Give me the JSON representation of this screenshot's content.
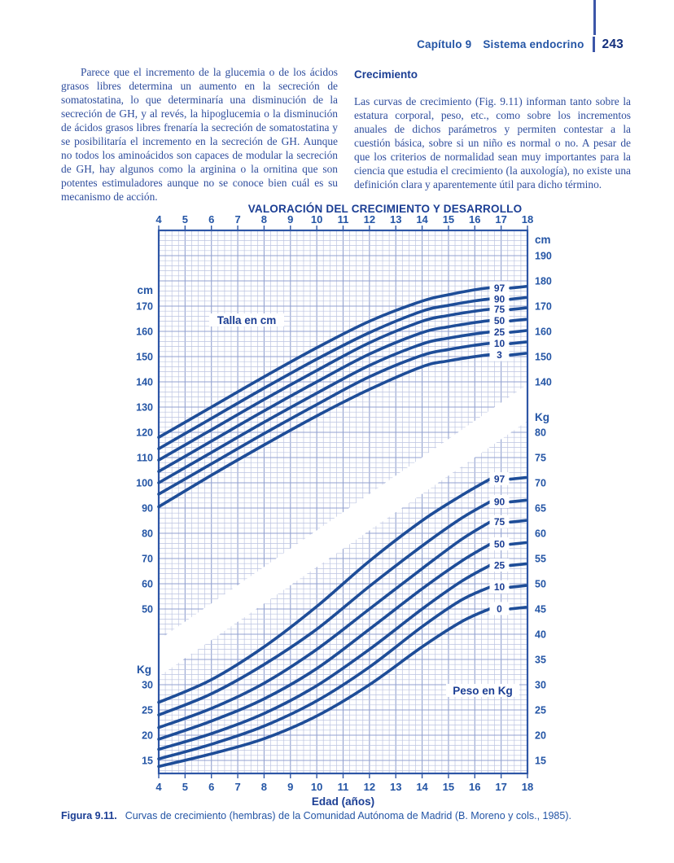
{
  "header": {
    "chapter": "Capítulo 9",
    "section": "Sistema endocrino",
    "page_number": "243"
  },
  "left_column": {
    "paragraph": "Parece que el incremento de la glucemia o de los ácidos grasos libres determina un aumento en la secreción de somatostatina, lo que determinaría una disminución de la secreción de GH, y al revés, la hipoglucemia o la disminución de ácidos grasos libres frenaría la secreción de somatostatina y se posibilitaría el incremento en la secreción de GH. Aunque no todos los aminoácidos son capaces de modular la secreción de GH, hay algunos como la arginina o la ornitina que son potentes estimuladores aunque no se conoce bien cuál es su mecanismo de acción."
  },
  "right_column": {
    "heading": "Crecimiento",
    "paragraph": "Las curvas de crecimiento (Fig. 9.11) informan tanto sobre la estatura corporal, peso, etc., como sobre los incrementos anuales de dichos parámetros y permiten contestar a la cuestión básica, sobre si un niño es normal o no. A pesar de que los criterios de normalidad sean muy importantes para la ciencia que estudia el crecimiento (la auxología), no existe una definición clara y aparentemente útil para dicho término."
  },
  "figure_caption": {
    "label": "Figura 9.11.",
    "text": "Curvas de crecimiento (hembras) de la Comunidad Autónoma de Madrid (B. Moreno y cols., 1985)."
  },
  "chart_data": {
    "type": "line",
    "title": "VALORACIÓN DEL CRECIMIENTO Y DESARROLLO",
    "xlabel": "Edad (años)",
    "x_range": [
      4,
      18
    ],
    "x_ticks": [
      4,
      5,
      6,
      7,
      8,
      9,
      10,
      11,
      12,
      13,
      14,
      15,
      16,
      17,
      18
    ],
    "grid": true,
    "legend_position": "none",
    "height_chart": {
      "inner_label": "Talla en cm",
      "unit": "cm",
      "left_axis_ticks": [
        170,
        160,
        150,
        140,
        130,
        120,
        110,
        100,
        90,
        80,
        70,
        60,
        50
      ],
      "right_axis_ticks": [
        190,
        180,
        170,
        160,
        150,
        140
      ],
      "axis_range_cm": [
        50,
        190
      ],
      "ages": [
        4,
        6,
        8,
        10,
        12,
        14,
        15,
        16,
        16.6
      ],
      "series": [
        {
          "name": "97",
          "values": [
            118,
            130,
            142,
            153.5,
            164,
            172,
            174.5,
            176.5,
            177.3
          ]
        },
        {
          "name": "90",
          "values": [
            113.5,
            125.5,
            137.5,
            149,
            159.5,
            168,
            170.3,
            172.1,
            172.9
          ]
        },
        {
          "name": "75",
          "values": [
            109,
            121,
            133,
            144.5,
            155.5,
            164,
            166.3,
            168,
            168.8
          ]
        },
        {
          "name": "50",
          "values": [
            104.5,
            116.5,
            128.5,
            140,
            151,
            159.5,
            161.8,
            163.5,
            164.3
          ]
        },
        {
          "name": "25",
          "values": [
            100,
            112,
            124,
            135.5,
            146.5,
            155,
            157.3,
            159,
            159.8
          ]
        },
        {
          "name": "10",
          "values": [
            95.5,
            107.5,
            119.5,
            131,
            142,
            150.5,
            152.8,
            154.5,
            155.3
          ]
        },
        {
          "name": "3",
          "values": [
            90.5,
            103,
            115,
            126.5,
            137,
            146,
            148.3,
            150,
            150.8
          ]
        }
      ]
    },
    "weight_chart": {
      "inner_label": "Peso en Kg",
      "unit": "Kg",
      "left_axis_ticks": [
        30,
        25,
        20,
        15
      ],
      "right_axis_ticks": [
        80,
        75,
        70,
        65,
        60,
        55,
        50,
        45,
        40,
        35,
        30,
        25,
        20,
        15
      ],
      "axis_range_kg": [
        15,
        80
      ],
      "ages": [
        4,
        6,
        8,
        10,
        12,
        14,
        15.5,
        16.6
      ],
      "series": [
        {
          "name": "97",
          "values": [
            26.5,
            31,
            37.5,
            45.5,
            54.5,
            62.5,
            67.5,
            70.8
          ]
        },
        {
          "name": "90",
          "values": [
            24,
            28.2,
            34,
            41,
            49.5,
            57.5,
            63,
            66.3
          ]
        },
        {
          "name": "75",
          "values": [
            21.5,
            25.3,
            30.3,
            37,
            45,
            53,
            58.8,
            62.3
          ]
        },
        {
          "name": "50",
          "values": [
            19.2,
            22.8,
            27.2,
            33.2,
            41,
            49,
            54.5,
            57.9
          ]
        },
        {
          "name": "25",
          "values": [
            17.2,
            20.3,
            24.3,
            29.8,
            37,
            45,
            50.5,
            53.7
          ]
        },
        {
          "name": "10",
          "values": [
            15.3,
            18.2,
            21.8,
            26.8,
            33.5,
            41.5,
            46.8,
            49.4
          ]
        },
        {
          "name": "0",
          "values": [
            13.8,
            16.3,
            19.3,
            23.8,
            30,
            37.5,
            42.5,
            45.1
          ]
        }
      ]
    }
  },
  "colors": {
    "curve": "#1e4d98",
    "grid_minor": "#bcc4e1",
    "grid_major": "#93a2d0",
    "frame": "#2e56a6",
    "axis_text": "#2455a5",
    "dark_text": "#1b3e94",
    "body_text": "#2e4d9d",
    "band": "#ffffff"
  }
}
